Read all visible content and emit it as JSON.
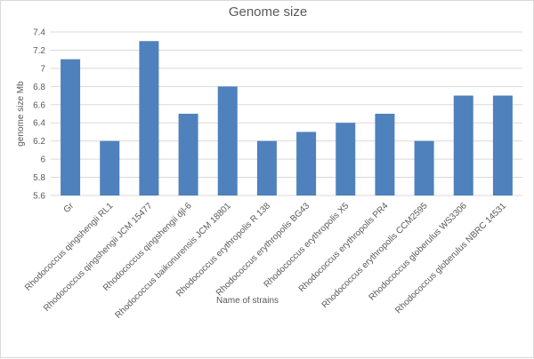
{
  "chart_data": {
    "type": "bar",
    "title": "Genome size",
    "xlabel": "Name of strains",
    "ylabel": "genome size Mb",
    "ylim": [
      5.6,
      7.4
    ],
    "yticks": [
      "5.6",
      "5.8",
      "6",
      "6.2",
      "6.4",
      "6.6",
      "6.8",
      "7",
      "7.2",
      "7.4"
    ],
    "grid": true,
    "bar_color": "#4f81bd",
    "categories": [
      "Gr",
      "Rhodococcus qingshengii RL1",
      "Rhodococcus qingshengii JCM 15477",
      "Rhodococcus qingshengii djl-6",
      "Rhodococcus baikonurensis JCM 18801",
      "Rhodococcus erythropolis R 138",
      "Rhodococcus erythropolis BG43",
      "Rhodococcus erythropolis X5",
      "Rhodococcus erythropolis PR4",
      "Rhodococcus erythropolis CCM2595",
      "Rhodococcus globerulus WS3306",
      "Rhodococcus globerulus NBRC 14531"
    ],
    "values": [
      7.1,
      6.2,
      7.3,
      6.5,
      6.8,
      6.2,
      6.3,
      6.4,
      6.5,
      6.2,
      6.7,
      6.7
    ]
  }
}
